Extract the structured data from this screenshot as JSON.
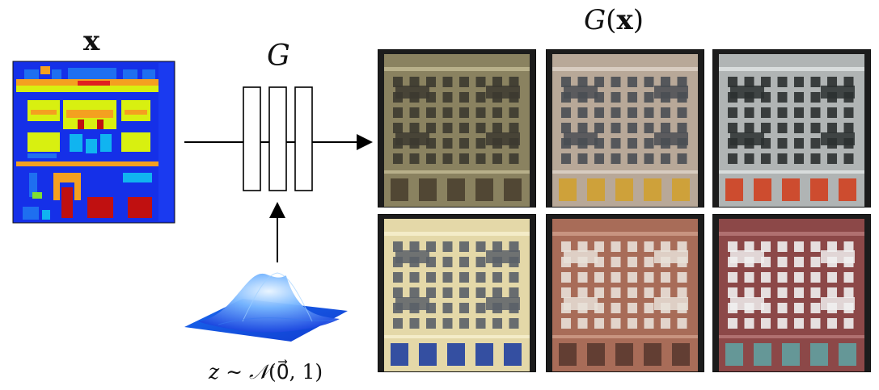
{
  "labels": {
    "input_symbol": "x",
    "generator_symbol": "G",
    "output_func": "G",
    "output_open": "(",
    "output_arg": "x",
    "output_close": ")",
    "noise_var": "z",
    "noise_sim": " ∼ ",
    "noise_dist": "𝒩",
    "noise_params": "(0⃗, 1)"
  },
  "colors": {
    "label_map_bg": "#1530e8",
    "label_blue": "#1e6ff0",
    "label_cyan": "#10b4f0",
    "label_yellow": "#d8f010",
    "label_orange": "#f4a020",
    "label_red": "#c01010",
    "label_green": "#80e030",
    "noise_surface_dark": "#2450e0",
    "noise_surface_light": "#cfe8ff"
  },
  "outputs": {
    "facades": [
      {
        "wall": "#8a8260",
        "window": "#3c3a30",
        "trim": "#b8b08a",
        "shop": "#4a4030"
      },
      {
        "wall": "#b8a898",
        "window": "#4a4e54",
        "trim": "#d8ccc0",
        "shop": "#d0a030"
      },
      {
        "wall": "#b0b4b4",
        "window": "#2c3030",
        "trim": "#d8dcdc",
        "shop": "#d04020"
      },
      {
        "wall": "#e4d8a8",
        "window": "#5a6068",
        "trim": "#f4ecc8",
        "shop": "#2040a0"
      },
      {
        "wall": "#a86c58",
        "window": "#e8e0d8",
        "trim": "#c89480",
        "shop": "#5a3a30"
      },
      {
        "wall": "#8c4848",
        "window": "#f0f0f0",
        "trim": "#b07070",
        "shop": "#60a0a0"
      }
    ]
  }
}
